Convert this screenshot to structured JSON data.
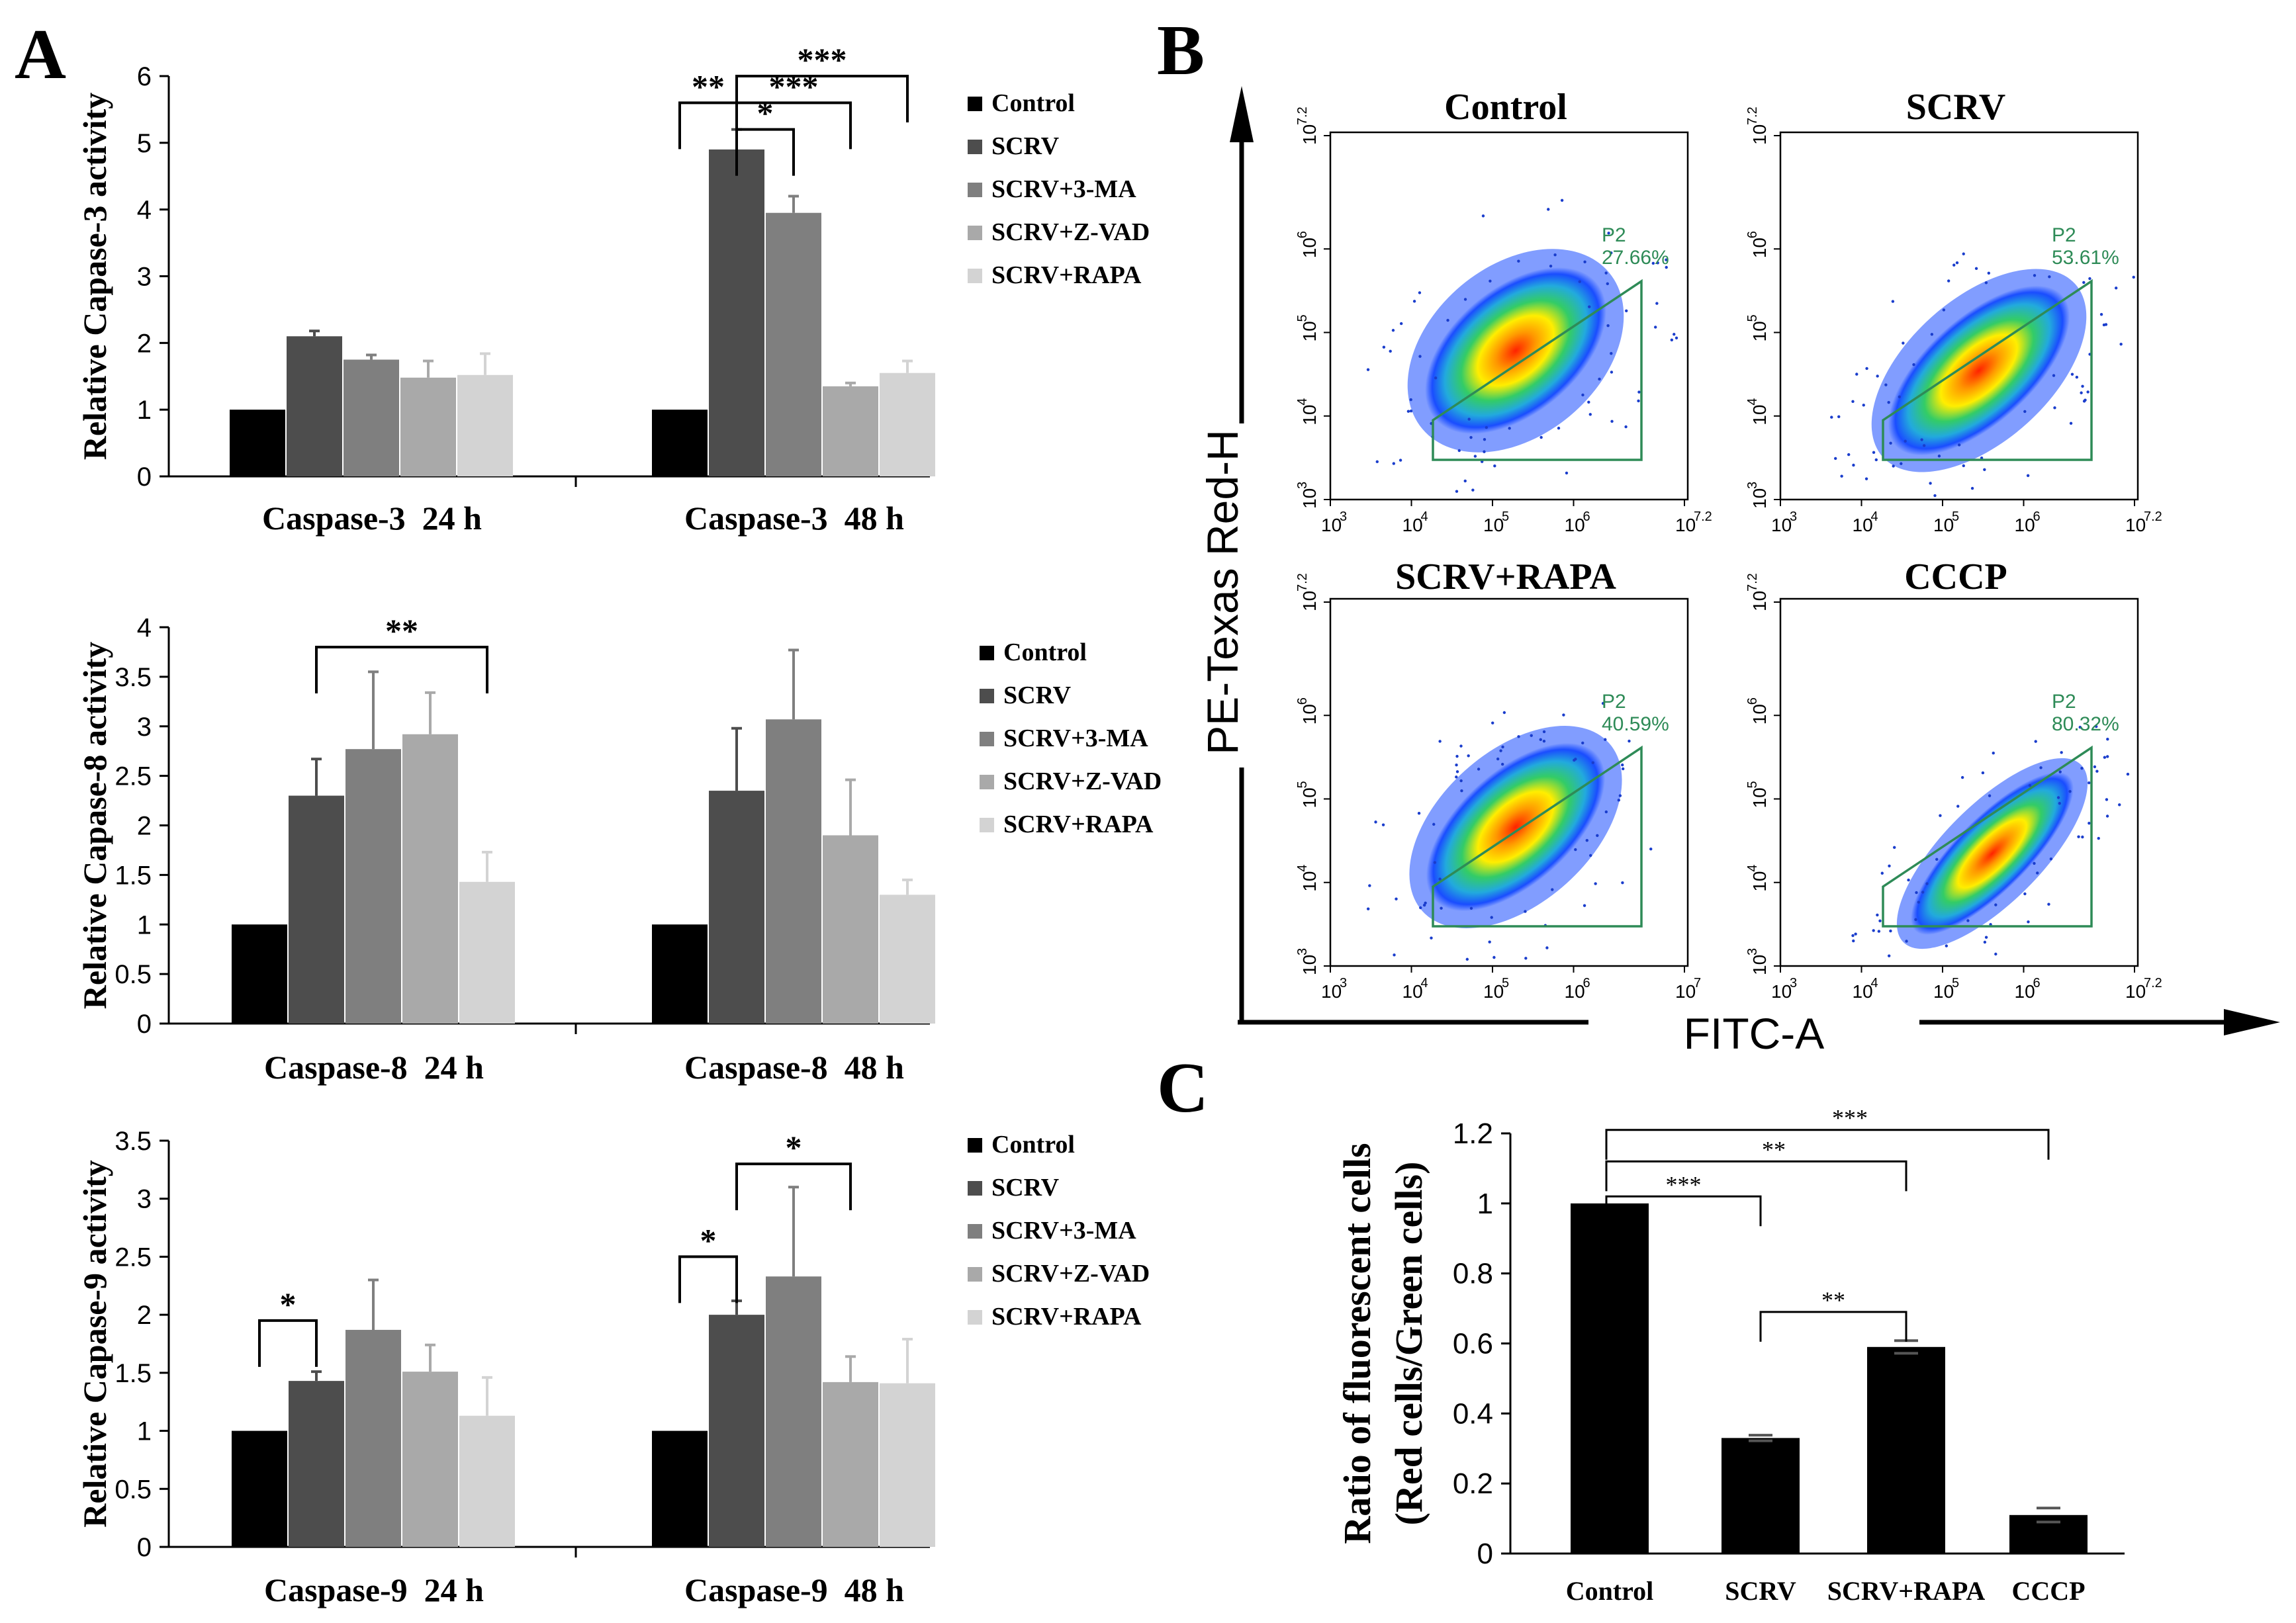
{
  "panel_labels": {
    "a": "A",
    "b": "B",
    "c": "C"
  },
  "colors": {
    "series": [
      "#000000",
      "#4d4d4d",
      "#7f7f7f",
      "#a9a9a9",
      "#d3d3d3"
    ],
    "gate": "#2e8b57",
    "bar_c": "#000000"
  },
  "chart_data": [
    {
      "id": "caspase3",
      "type": "bar",
      "ylabel": "Relative Capase-3 activity",
      "ylim": [
        0,
        6
      ],
      "yticks": [
        "0",
        "1",
        "2",
        "3",
        "4",
        "5",
        "6"
      ],
      "categories": [
        "Caspase-3  24 h",
        "Caspase-3  48 h"
      ],
      "series": [
        {
          "name": "Control",
          "values": [
            1.0,
            1.0
          ],
          "errors": [
            0.0,
            0.0
          ]
        },
        {
          "name": "SCRV",
          "values": [
            2.1,
            4.9
          ],
          "errors": [
            0.08,
            0.3
          ]
        },
        {
          "name": "SCRV+3-MA",
          "values": [
            1.75,
            3.95
          ],
          "errors": [
            0.07,
            0.25
          ]
        },
        {
          "name": "SCRV+Z-VAD",
          "values": [
            1.48,
            1.35
          ],
          "errors": [
            0.25,
            0.05
          ]
        },
        {
          "name": "SCRV+RAPA",
          "values": [
            1.52,
            1.55
          ],
          "errors": [
            0.32,
            0.18
          ]
        }
      ],
      "significance": [
        {
          "label": "**",
          "group": 1,
          "from": 0,
          "to": 1,
          "level": 5.6
        },
        {
          "label": "*",
          "group": 1,
          "from": 1,
          "to": 2,
          "level": 5.2
        },
        {
          "label": "***",
          "group": 1,
          "from": 1,
          "to": 3,
          "level": 5.6
        },
        {
          "label": "***",
          "group": 1,
          "from": 1,
          "to": 4,
          "level": 6.0
        }
      ]
    },
    {
      "id": "caspase8",
      "type": "bar",
      "ylabel": "Relative Capase-8 activity",
      "ylim": [
        0,
        4
      ],
      "yticks": [
        "0",
        "0.5",
        "1",
        "1.5",
        "2",
        "2.5",
        "3",
        "3.5",
        "4"
      ],
      "categories": [
        "Caspase-8  24 h",
        "Caspase-8  48 h"
      ],
      "series": [
        {
          "name": "Control",
          "values": [
            1.0,
            1.0
          ],
          "errors": [
            0.0,
            0.0
          ]
        },
        {
          "name": "SCRV",
          "values": [
            2.3,
            2.35
          ],
          "errors": [
            0.37,
            0.63
          ]
        },
        {
          "name": "SCRV+3-MA",
          "values": [
            2.77,
            3.07
          ],
          "errors": [
            0.78,
            0.7
          ]
        },
        {
          "name": "SCRV+Z-VAD",
          "values": [
            2.92,
            1.9
          ],
          "errors": [
            0.42,
            0.56
          ]
        },
        {
          "name": "SCRV+RAPA",
          "values": [
            1.43,
            1.3
          ],
          "errors": [
            0.3,
            0.15
          ]
        }
      ],
      "significance": [
        {
          "label": "**",
          "group": 0,
          "from": 1,
          "to": 4,
          "level": 3.8
        }
      ]
    },
    {
      "id": "caspase9",
      "type": "bar",
      "ylabel": "Relative Capase-9 activity",
      "ylim": [
        0,
        3.5
      ],
      "yticks": [
        "0",
        "0.5",
        "1",
        "1.5",
        "2",
        "2.5",
        "3",
        "3.5"
      ],
      "categories": [
        "Caspase-9  24 h",
        "Caspase-9  48 h"
      ],
      "series": [
        {
          "name": "Control",
          "values": [
            1.0,
            1.0
          ],
          "errors": [
            0.0,
            0.0
          ]
        },
        {
          "name": "SCRV",
          "values": [
            1.43,
            2.0
          ],
          "errors": [
            0.08,
            0.12
          ]
        },
        {
          "name": "SCRV+3-MA",
          "values": [
            1.87,
            2.33
          ],
          "errors": [
            0.43,
            0.77
          ]
        },
        {
          "name": "SCRV+Z-VAD",
          "values": [
            1.51,
            1.42
          ],
          "errors": [
            0.23,
            0.22
          ]
        },
        {
          "name": "SCRV+RAPA",
          "values": [
            1.13,
            1.41
          ],
          "errors": [
            0.33,
            0.38
          ]
        }
      ],
      "significance": [
        {
          "label": "*",
          "group": 0,
          "from": 0,
          "to": 1,
          "level": 1.95
        },
        {
          "label": "*",
          "group": 1,
          "from": 0,
          "to": 1,
          "level": 2.5
        },
        {
          "label": "*",
          "group": 1,
          "from": 1,
          "to": 3,
          "level": 3.3
        }
      ]
    },
    {
      "id": "flow",
      "type": "scatter",
      "xlabel": "FITC-A",
      "ylabel": "PE-Texas Red-H",
      "x_ticks": [
        "10",
        "10",
        "10",
        "10",
        "10"
      ],
      "x_tick_exps": [
        "3",
        "4",
        "5",
        "6",
        "7.2"
      ],
      "x_tick_exps_alt": [
        "3",
        "4",
        "5",
        "6",
        "7"
      ],
      "y_ticks": [
        "10",
        "10",
        "10",
        "10",
        "10"
      ],
      "y_tick_exps": [
        "3",
        "4",
        "5",
        "6",
        "7.2"
      ],
      "plots": [
        {
          "title": "Control",
          "gate": "P2",
          "percent": "27.66%"
        },
        {
          "title": "SCRV",
          "gate": "P2",
          "percent": "53.61%"
        },
        {
          "title": "SCRV+RAPA",
          "gate": "P2",
          "percent": "40.59%"
        },
        {
          "title": "CCCP",
          "gate": "P2",
          "percent": "80.32%"
        }
      ]
    },
    {
      "id": "ratio",
      "type": "bar",
      "ylabel_line1": "Ratio of fluorescent cells",
      "ylabel_line2": "(Red cells/Green cells)",
      "ylim": [
        0,
        1.2
      ],
      "yticks": [
        "0",
        "0.2",
        "0.4",
        "0.6",
        "0.8",
        "1",
        "1.2"
      ],
      "categories": [
        "Control",
        "SCRV",
        "SCRV+RAPA",
        "CCCP"
      ],
      "values": [
        1.0,
        0.33,
        0.59,
        0.11
      ],
      "errors": [
        0.0,
        0.008,
        0.018,
        0.02
      ],
      "significance": [
        {
          "label": "***",
          "from": 0,
          "to": 1,
          "level": 1.02
        },
        {
          "label": "**",
          "from": 0,
          "to": 2,
          "level": 1.12
        },
        {
          "label": "***",
          "from": 0,
          "to": 3,
          "level": 1.21
        },
        {
          "label": "**",
          "from": 1,
          "to": 2,
          "level": 0.69
        }
      ]
    }
  ]
}
